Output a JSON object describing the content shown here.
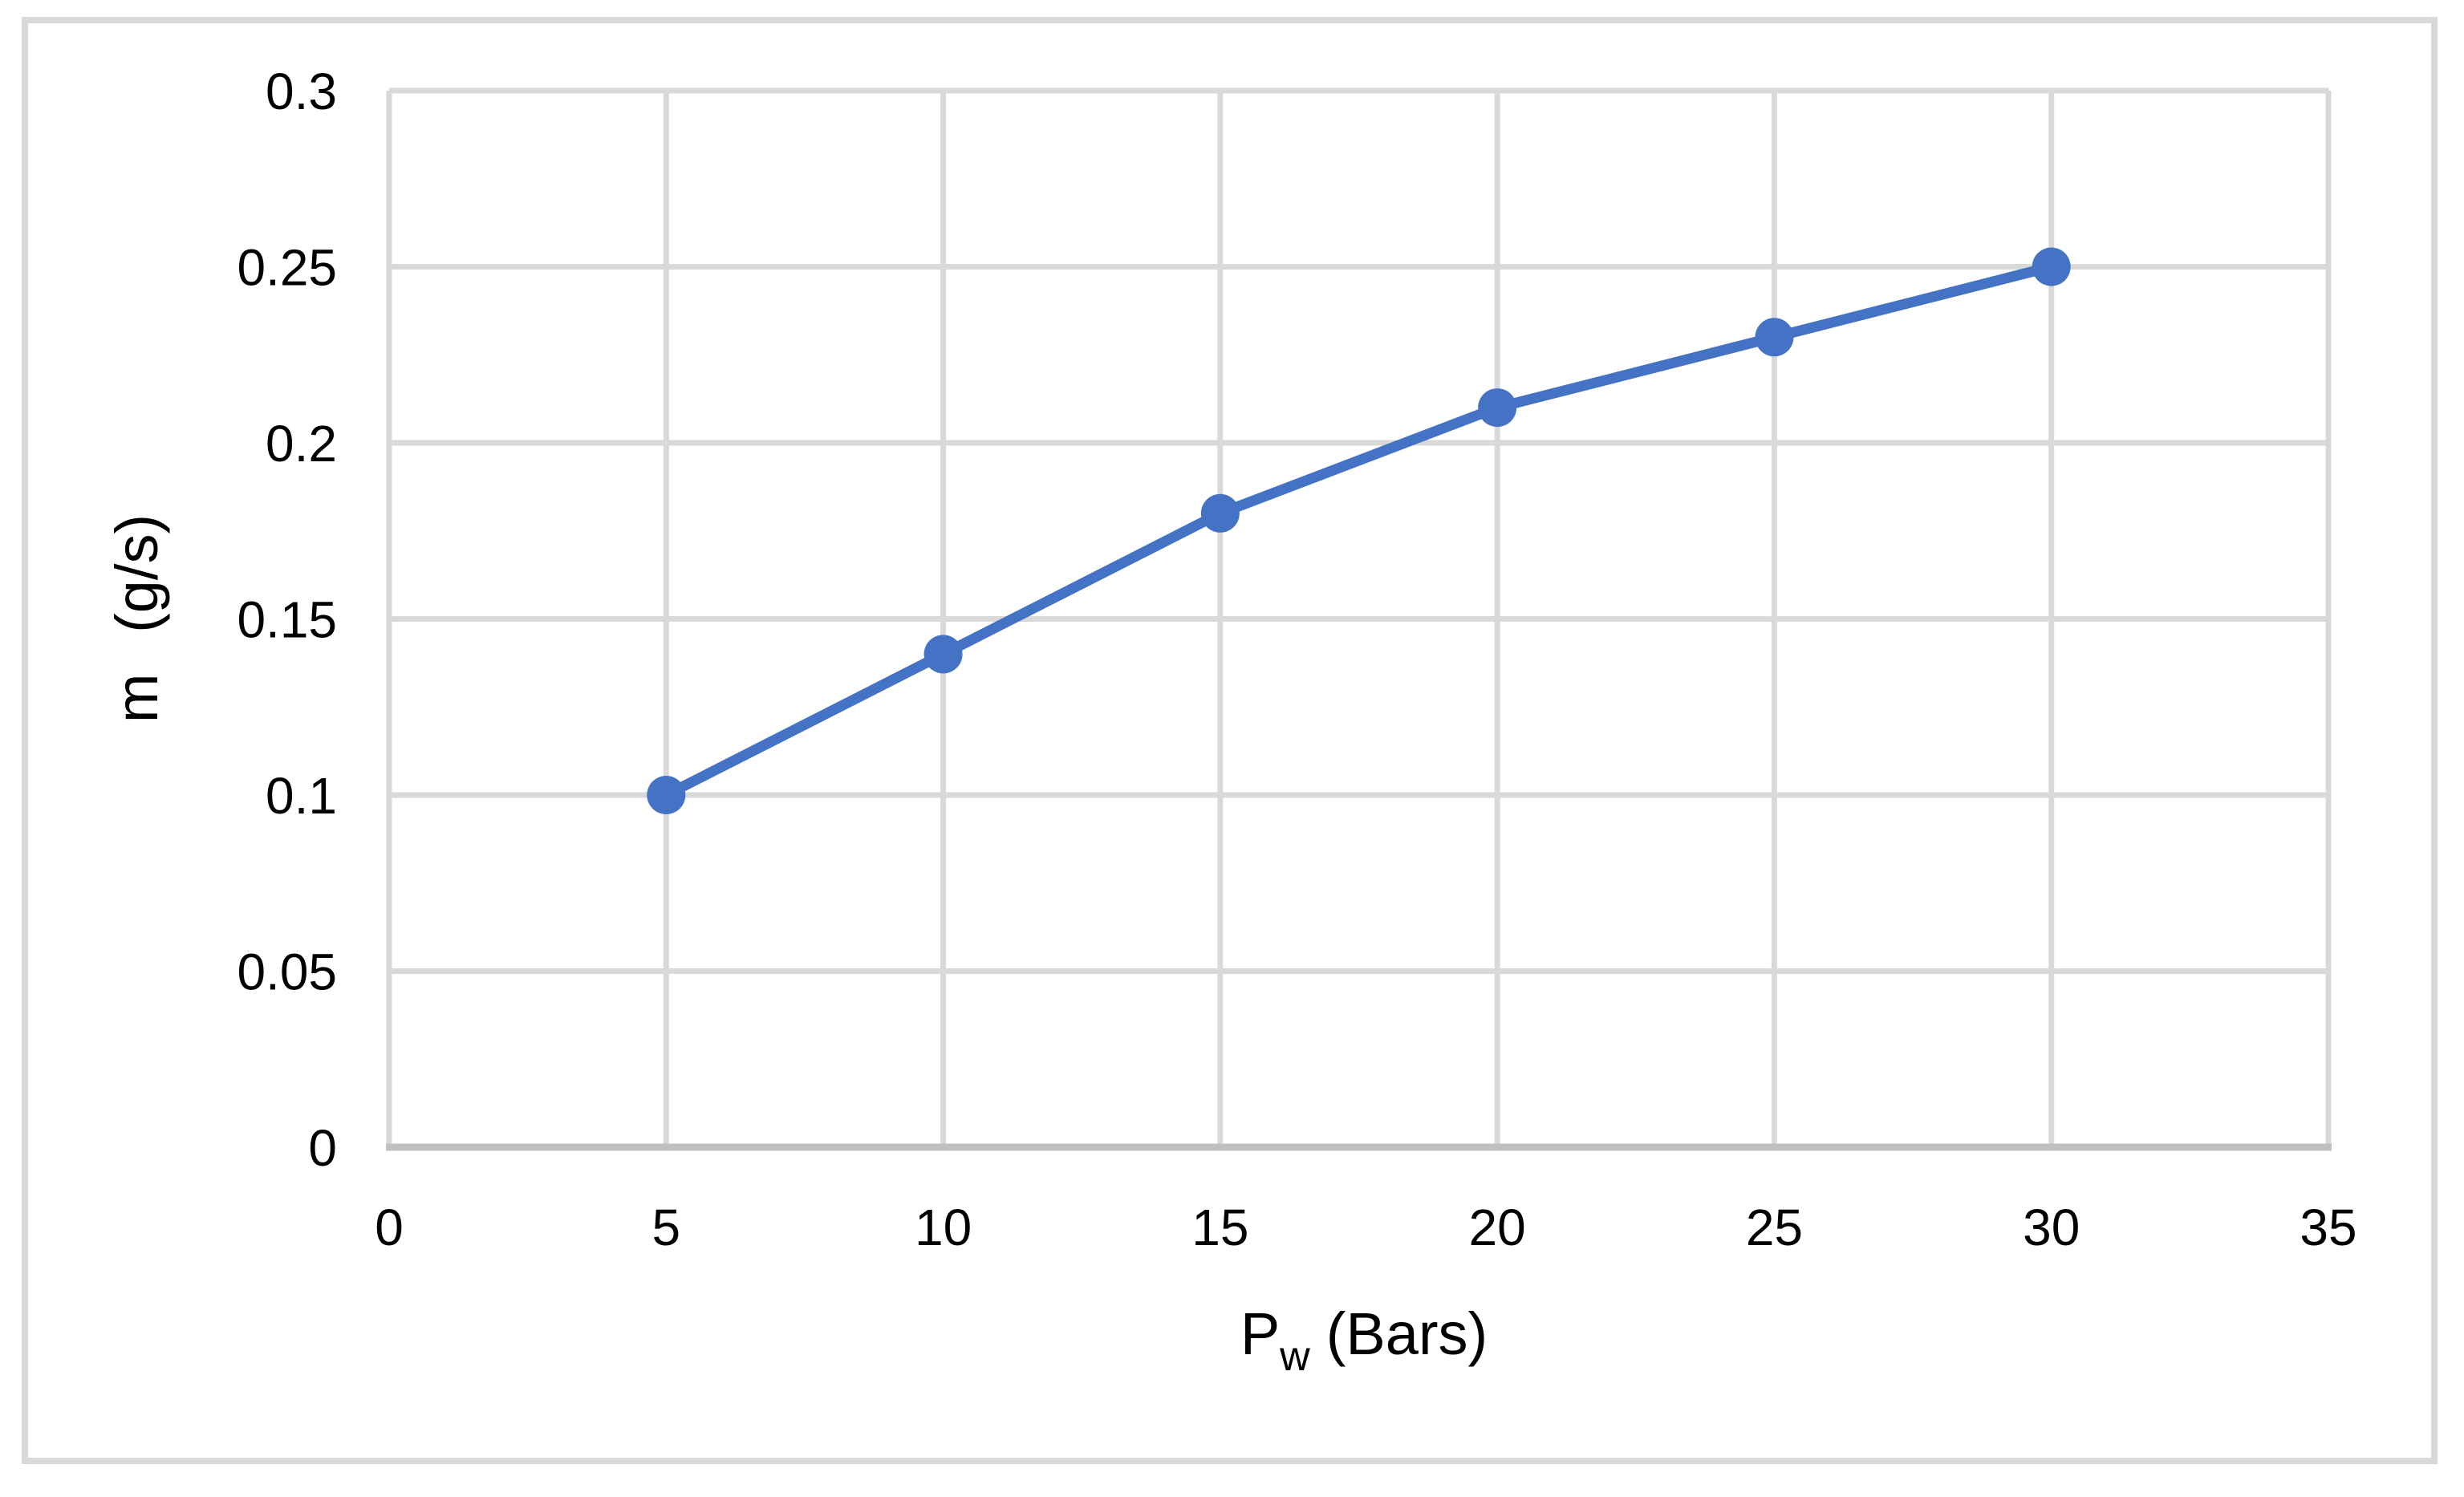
{
  "figure": {
    "background": "#FFFFFF",
    "border_color": "#D9D9D9"
  },
  "chart_data": {
    "type": "line",
    "title": "",
    "legend_position": "none",
    "grid": true,
    "x": [
      5,
      10,
      15,
      20,
      25,
      30
    ],
    "series": [
      {
        "values": [
          0.1,
          0.14,
          0.18,
          0.21,
          0.23,
          0.25
        ]
      }
    ],
    "x_axis": {
      "label": "Pw (Bars)",
      "title_main": "P",
      "title_sub": "w",
      "title_rest": "(Bars)",
      "min": 0,
      "max": 35,
      "tick_step": 5,
      "ticks": [
        "0",
        "5",
        "10",
        "15",
        "20",
        "25",
        "30",
        "35"
      ]
    },
    "y_axis": {
      "label": "m (g/s)",
      "min": 0,
      "max": 0.3,
      "tick_step": 0.05,
      "ticks": [
        "0",
        "0.05",
        "0.1",
        "0.15",
        "0.2",
        "0.25",
        "0.3"
      ]
    },
    "colors": {
      "line": "#4472C4",
      "marker": "#4472C4",
      "gridline": "#D9D9D9",
      "axis_line": "#C0C0C0",
      "text": "#000000"
    }
  }
}
